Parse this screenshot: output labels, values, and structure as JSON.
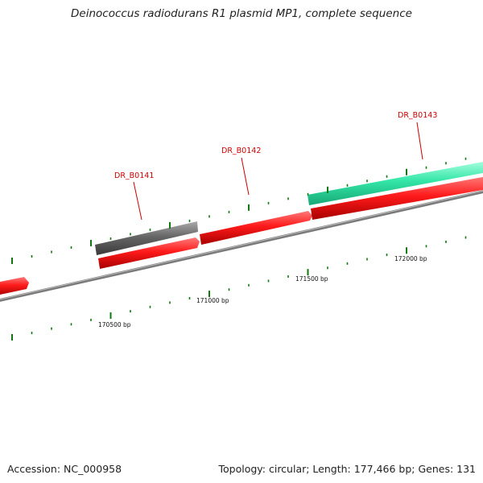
{
  "title": "Deinococcus radiodurans R1 plasmid MP1, complete sequence",
  "footer": {
    "accession": "Accession: NC_000958",
    "summary": "Topology: circular; Length: 177,466 bp; Genes: 131"
  },
  "colors": {
    "gene_label": "#cc0000",
    "forward_gene": "#ff1a1a",
    "reverse_gene_teal": "#33e6a6",
    "reverse_gene_gray": "#666666",
    "backbone": "#888888",
    "ticks": "#117711"
  },
  "genes": [
    {
      "id": "DR_B0141",
      "label": "DR_B0141"
    },
    {
      "id": "DR_B0142",
      "label": "DR_B0142"
    },
    {
      "id": "DR_B0143",
      "label": "DR_B0143"
    }
  ],
  "ticks": [
    {
      "label": "170500 bp"
    },
    {
      "label": "171000 bp"
    },
    {
      "label": "171500 bp"
    },
    {
      "label": "172000 bp"
    }
  ]
}
